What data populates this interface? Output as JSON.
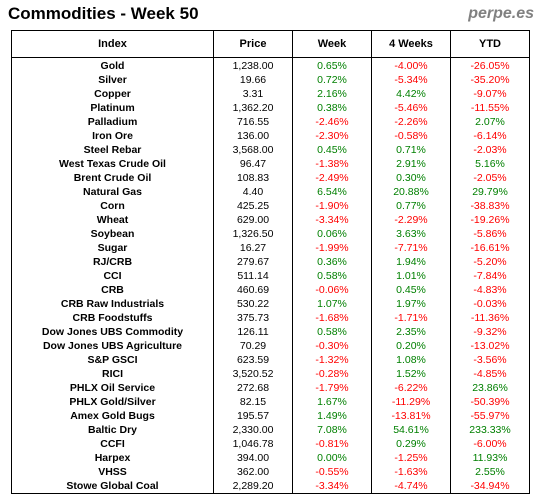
{
  "title": "Commodities - Week 50",
  "brand": "perpe.es",
  "colors": {
    "positive": "#008000",
    "negative": "#ff0000"
  },
  "columns": [
    "Index",
    "Price",
    "Week",
    "4 Weeks",
    "YTD"
  ],
  "rows": [
    [
      "Gold",
      "1,238.00",
      "0.65%",
      "-4.00%",
      "-26.05%"
    ],
    [
      "Silver",
      "19.66",
      "0.72%",
      "-5.34%",
      "-35.20%"
    ],
    [
      "Copper",
      "3.31",
      "2.16%",
      "4.42%",
      "-9.07%"
    ],
    [
      "Platinum",
      "1,362.20",
      "0.38%",
      "-5.46%",
      "-11.55%"
    ],
    [
      "Palladium",
      "716.55",
      "-2.46%",
      "-2.26%",
      "2.07%"
    ],
    [
      "Iron Ore",
      "136.00",
      "-2.30%",
      "-0.58%",
      "-6.14%"
    ],
    [
      "Steel Rebar",
      "3,568.00",
      "0.45%",
      "0.71%",
      "-2.03%"
    ],
    [
      "West Texas Crude Oil",
      "96.47",
      "-1.38%",
      "2.91%",
      "5.16%"
    ],
    [
      "Brent Crude Oil",
      "108.83",
      "-2.49%",
      "0.30%",
      "-2.05%"
    ],
    [
      "Natural Gas",
      "4.40",
      "6.54%",
      "20.88%",
      "29.79%"
    ],
    [
      "Corn",
      "425.25",
      "-1.90%",
      "0.77%",
      "-38.83%"
    ],
    [
      "Wheat",
      "629.00",
      "-3.34%",
      "-2.29%",
      "-19.26%"
    ],
    [
      "Soybean",
      "1,326.50",
      "0.06%",
      "3.63%",
      "-5.86%"
    ],
    [
      "Sugar",
      "16.27",
      "-1.99%",
      "-7.71%",
      "-16.61%"
    ],
    [
      "RJ/CRB",
      "279.67",
      "0.36%",
      "1.94%",
      "-5.20%"
    ],
    [
      "CCI",
      "511.14",
      "0.58%",
      "1.01%",
      "-7.84%"
    ],
    [
      "CRB",
      "460.69",
      "-0.06%",
      "0.45%",
      "-4.83%"
    ],
    [
      "CRB Raw Industrials",
      "530.22",
      "1.07%",
      "1.97%",
      "-0.03%"
    ],
    [
      "CRB Foodstuffs",
      "375.73",
      "-1.68%",
      "-1.71%",
      "-11.36%"
    ],
    [
      "Dow Jones UBS Commodity",
      "126.11",
      "0.58%",
      "2.35%",
      "-9.32%"
    ],
    [
      "Dow Jones UBS Agriculture",
      "70.29",
      "-0.30%",
      "0.20%",
      "-13.02%"
    ],
    [
      "S&P GSCI",
      "623.59",
      "-1.32%",
      "1.08%",
      "-3.56%"
    ],
    [
      "RICI",
      "3,520.52",
      "-0.28%",
      "1.52%",
      "-4.85%"
    ],
    [
      "PHLX Oil Service",
      "272.68",
      "-1.79%",
      "-6.22%",
      "23.86%"
    ],
    [
      "PHLX Gold/Silver",
      "82.15",
      "1.67%",
      "-11.29%",
      "-50.39%"
    ],
    [
      "Amex Gold Bugs",
      "195.57",
      "1.49%",
      "-13.81%",
      "-55.97%"
    ],
    [
      "Baltic Dry",
      "2,330.00",
      "7.08%",
      "54.61%",
      "233.33%"
    ],
    [
      "CCFI",
      "1,046.78",
      "-0.81%",
      "0.29%",
      "-6.00%"
    ],
    [
      "Harpex",
      "394.00",
      "0.00%",
      "-1.25%",
      "11.93%"
    ],
    [
      "VHSS",
      "362.00",
      "-0.55%",
      "-1.63%",
      "2.55%"
    ],
    [
      "Stowe Global Coal",
      "2,289.20",
      "-3.34%",
      "-4.74%",
      "-34.94%"
    ]
  ]
}
